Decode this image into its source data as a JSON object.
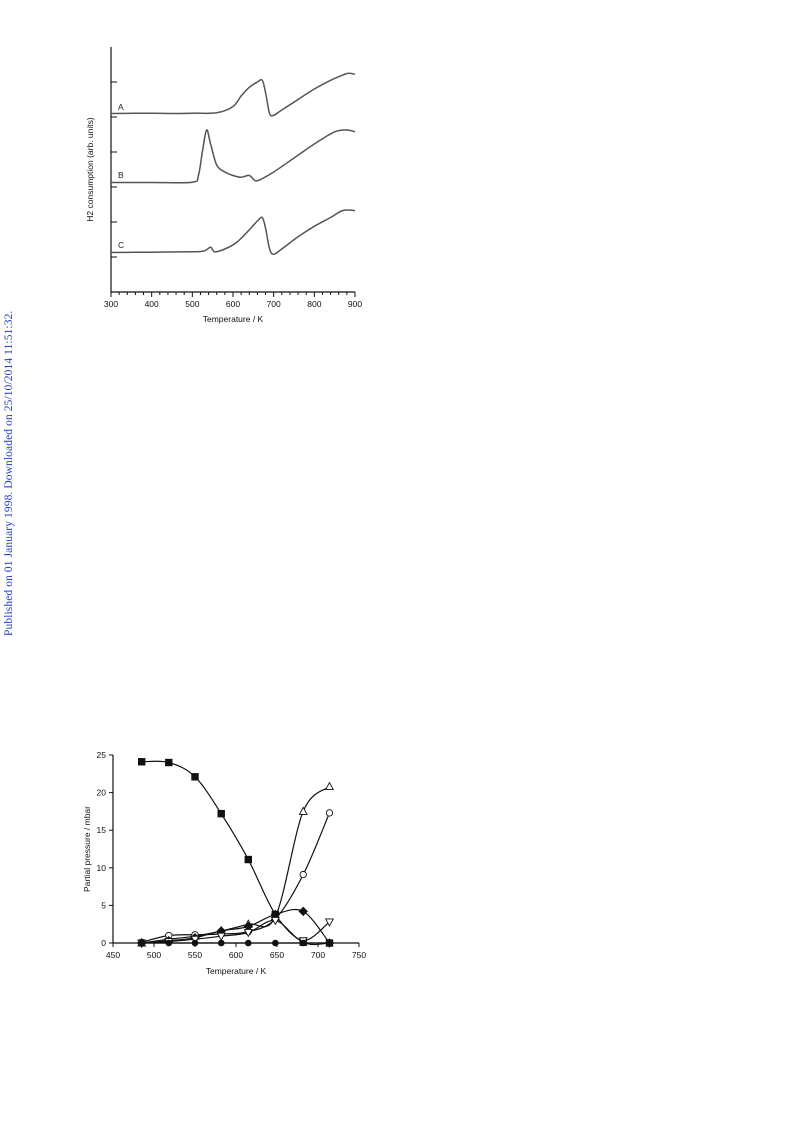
{
  "side_note": "Published on 01 January 1998. Downloaded on 25/10/2014 11:51:32.",
  "chart_data": [
    {
      "type": "line",
      "xlabel": "Temperature / K",
      "ylabel": "H2 consumption (arb. units)",
      "xlim": [
        300,
        900
      ],
      "xticks": [
        "300",
        "400",
        "500",
        "600",
        "700",
        "800",
        "900"
      ],
      "series": [
        {
          "name": "A",
          "x": [
            300,
            400,
            450,
            500,
            560,
            600,
            620,
            640,
            660,
            672,
            680,
            690,
            700,
            720,
            760,
            800,
            840,
            870,
            885,
            900
          ],
          "y": [
            0.1,
            0.11,
            0.1,
            0.11,
            0.12,
            0.3,
            0.6,
            0.85,
            1.0,
            1.05,
            0.7,
            0.1,
            0.05,
            0.2,
            0.5,
            0.8,
            1.05,
            1.2,
            1.25,
            1.22
          ]
        },
        {
          "name": "B",
          "x": [
            300,
            400,
            500,
            515,
            525,
            535,
            545,
            560,
            580,
            600,
            620,
            640,
            655,
            670,
            700,
            750,
            800,
            850,
            880,
            900
          ],
          "y": [
            0.1,
            0.1,
            0.11,
            0.3,
            1.0,
            1.6,
            1.2,
            0.6,
            0.4,
            0.3,
            0.25,
            0.3,
            0.15,
            0.2,
            0.4,
            0.8,
            1.2,
            1.55,
            1.6,
            1.55
          ]
        },
        {
          "name": "C",
          "x": [
            300,
            400,
            500,
            530,
            545,
            555,
            580,
            610,
            640,
            660,
            672,
            680,
            690,
            700,
            720,
            760,
            800,
            840,
            870,
            900
          ],
          "y": [
            0.1,
            0.11,
            0.12,
            0.15,
            0.25,
            0.12,
            0.2,
            0.4,
            0.75,
            1.0,
            1.1,
            0.8,
            0.2,
            0.05,
            0.2,
            0.55,
            0.85,
            1.1,
            1.3,
            1.3
          ]
        }
      ]
    },
    {
      "type": "scatter",
      "xlabel": "Temperature / K",
      "ylabel": "Partial pressure / mbar",
      "xlim": [
        450,
        750
      ],
      "ylim": [
        0,
        25
      ],
      "xticks": [
        "450",
        "500",
        "550",
        "600",
        "650",
        "700",
        "750"
      ],
      "yticks": [
        "0",
        "5",
        "10",
        "15",
        "20",
        "25"
      ],
      "series": [
        {
          "marker": "filled-square",
          "x": [
            485,
            518,
            550,
            582,
            615,
            648,
            682,
            714
          ],
          "y": [
            24.1,
            24.0,
            22.1,
            17.2,
            11.1,
            3.8,
            0.1,
            0.0
          ]
        },
        {
          "marker": "open-triangle-up",
          "x": [
            485,
            518,
            550,
            582,
            615,
            648,
            682,
            714
          ],
          "y": [
            0.0,
            0.5,
            0.9,
            1.6,
            2.5,
            3.5,
            17.5,
            20.8
          ]
        },
        {
          "marker": "open-circle",
          "x": [
            485,
            518,
            550,
            582,
            615,
            648,
            682,
            714
          ],
          "y": [
            0.1,
            1.0,
            1.1,
            1.2,
            1.5,
            3.2,
            9.1,
            17.3
          ]
        },
        {
          "marker": "filled-diamond",
          "x": [
            485,
            518,
            550,
            582,
            615,
            648,
            682,
            714
          ],
          "y": [
            0.0,
            0.3,
            0.7,
            1.6,
            2.2,
            3.8,
            4.2,
            0.0
          ]
        },
        {
          "marker": "open-triangle-down",
          "x": [
            485,
            518,
            550,
            582,
            615,
            648,
            682,
            714
          ],
          "y": [
            0.0,
            0.2,
            0.5,
            0.9,
            1.4,
            3.0,
            0.3,
            2.8
          ]
        },
        {
          "marker": "filled-circle",
          "x": [
            485,
            518,
            550,
            582,
            615,
            648,
            682,
            714
          ],
          "y": [
            0.0,
            0.0,
            0.0,
            0.0,
            0.0,
            0.0,
            0.0,
            0.0
          ]
        }
      ]
    }
  ]
}
